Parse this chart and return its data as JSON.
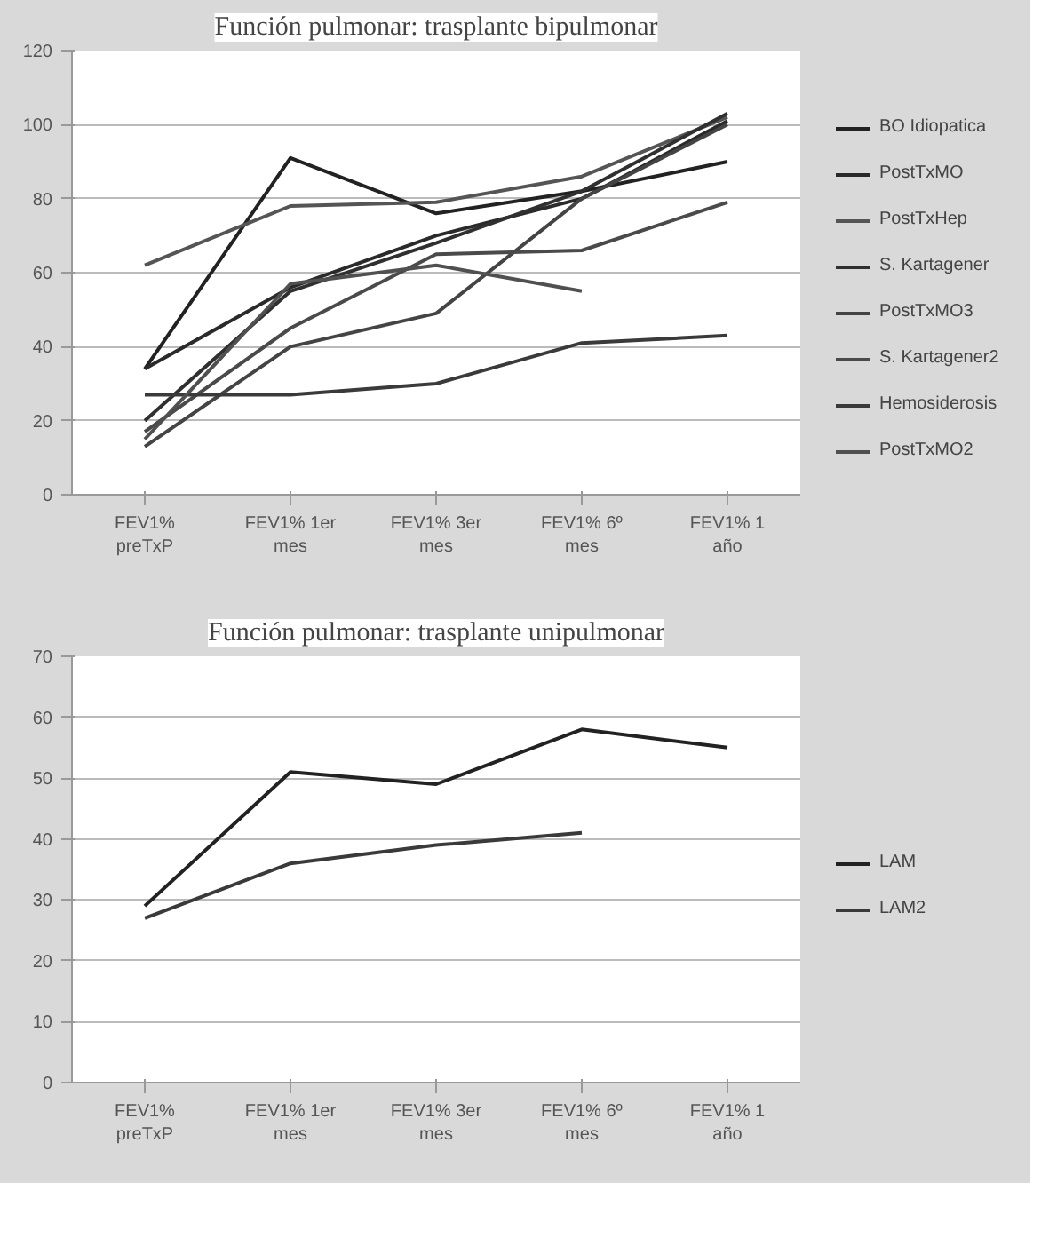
{
  "chart_data": [
    {
      "type": "line",
      "title": "Función pulmonar: trasplante bipulmonar",
      "categories": [
        "FEV1% preTxP",
        "FEV1% 1er mes",
        "FEV1% 3er mes",
        "FEV1% 6º mes",
        "FEV1% 1 año"
      ],
      "ylim": [
        0,
        120
      ],
      "yticks": [
        0,
        20,
        40,
        60,
        80,
        100,
        120
      ],
      "grid": "y",
      "legend": "right",
      "line_style": "solid",
      "series": [
        {
          "name": "BO Idiopatica",
          "color": "#222222",
          "values": [
            34,
            91,
            76,
            82,
            90
          ]
        },
        {
          "name": "PostTxMO",
          "color": "#2a2a2a",
          "values": [
            34,
            56,
            70,
            80,
            101
          ]
        },
        {
          "name": "PostTxHep",
          "color": "#555555",
          "values": [
            62,
            78,
            79,
            86,
            102
          ]
        },
        {
          "name": "S. Kartagener",
          "color": "#303030",
          "values": [
            20,
            55,
            68,
            82,
            103
          ]
        },
        {
          "name": "PostTxMO3",
          "color": "#444444",
          "values": [
            13,
            40,
            49,
            80,
            100
          ]
        },
        {
          "name": "S. Kartagener2",
          "color": "#4a4a4a",
          "values": [
            17,
            45,
            65,
            66,
            79
          ]
        },
        {
          "name": "Hemosiderosis",
          "color": "#3a3a3a",
          "values": [
            27,
            27,
            30,
            41,
            43
          ]
        },
        {
          "name": "PostTxMO2",
          "color": "#505050",
          "values": [
            15,
            57,
            62,
            55,
            null
          ]
        }
      ]
    },
    {
      "type": "line",
      "title": "Función pulmonar: trasplante unipulmonar",
      "categories": [
        "FEV1% preTxP",
        "FEV1% 1er mes",
        "FEV1% 3er mes",
        "FEV1% 6º mes",
        "FEV1% 1 año"
      ],
      "ylim": [
        0,
        70
      ],
      "yticks": [
        0,
        10,
        20,
        30,
        40,
        50,
        60,
        70
      ],
      "grid": "y",
      "legend": "right",
      "line_style": "solid",
      "series": [
        {
          "name": "LAM",
          "color": "#222222",
          "values": [
            29,
            51,
            49,
            58,
            55
          ]
        },
        {
          "name": "LAM2",
          "color": "#3a3a3a",
          "values": [
            27,
            36,
            39,
            41,
            null
          ]
        }
      ]
    }
  ]
}
